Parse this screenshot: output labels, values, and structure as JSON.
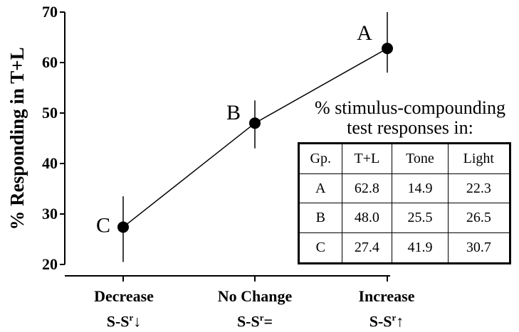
{
  "chart_data": {
    "type": "line",
    "ylabel": "% Responding in T+L",
    "ylim": [
      20,
      70
    ],
    "yticks": [
      20,
      30,
      40,
      50,
      60,
      70
    ],
    "categories": [
      {
        "line1": "Decrease",
        "line2": "S-S",
        "sup": "r",
        "symbol": "↓"
      },
      {
        "line1": "No Change",
        "line2": "S-S",
        "sup": "r",
        "symbol": "="
      },
      {
        "line1": "Increase",
        "line2": "S-S",
        "sup": "r",
        "symbol": "↑"
      }
    ],
    "points": [
      {
        "label": "C",
        "y": 27.4,
        "err_low": 20.5,
        "err_high": 33.5
      },
      {
        "label": "B",
        "y": 48.0,
        "err_low": 43.0,
        "err_high": 52.5
      },
      {
        "label": "A",
        "y": 62.8,
        "err_low": 58.0,
        "err_high": 70.0
      }
    ],
    "grid": false
  },
  "inset": {
    "title_line1": "% stimulus-compounding",
    "title_line2": "test responses in:",
    "columns": [
      "Gp.",
      "T+L",
      "Tone",
      "Light"
    ],
    "rows": [
      [
        "A",
        "62.8",
        "14.9",
        "22.3"
      ],
      [
        "B",
        "48.0",
        "25.5",
        "26.5"
      ],
      [
        "C",
        "27.4",
        "41.9",
        "30.7"
      ]
    ]
  }
}
